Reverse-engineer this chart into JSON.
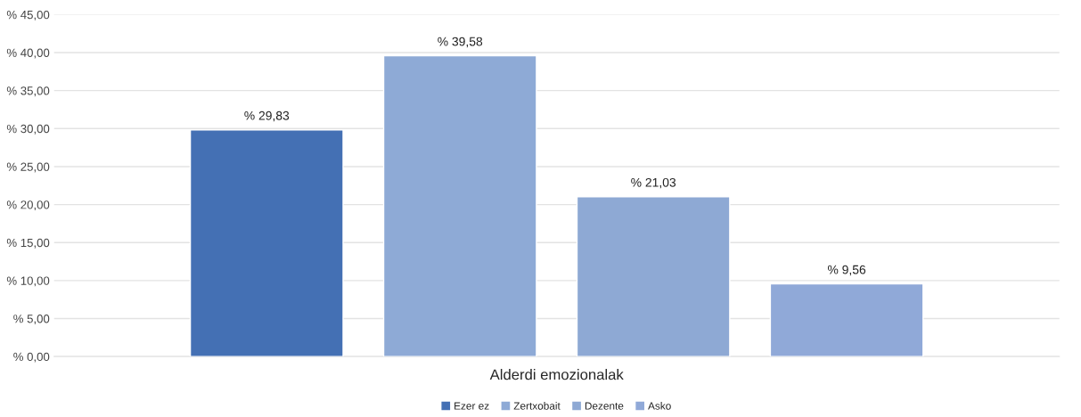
{
  "chart_data": {
    "type": "bar",
    "categories": [
      "Alderdi emozionalak"
    ],
    "series": [
      {
        "name": "Ezer ez",
        "color": "#4470b4",
        "values": [
          29.83
        ],
        "value_labels": [
          "% 29,83"
        ]
      },
      {
        "name": "Zertxobait",
        "color": "#8eaad6",
        "values": [
          39.58
        ],
        "value_labels": [
          "% 39,58"
        ]
      },
      {
        "name": "Dezente",
        "color": "#8ea9d4",
        "values": [
          21.03
        ],
        "value_labels": [
          "% 21,03"
        ]
      },
      {
        "name": "Asko",
        "color": "#90a9d8",
        "values": [
          9.56
        ],
        "value_labels": [
          "% 9,56"
        ]
      }
    ],
    "ylim": [
      0,
      45
    ],
    "yticks": [
      {
        "value": 0,
        "label": "% 0,00"
      },
      {
        "value": 5,
        "label": "% 5,00"
      },
      {
        "value": 10,
        "label": "% 10,00"
      },
      {
        "value": 15,
        "label": "% 15,00"
      },
      {
        "value": 20,
        "label": "% 20,00"
      },
      {
        "value": 25,
        "label": "% 25,00"
      },
      {
        "value": 30,
        "label": "% 30,00"
      },
      {
        "value": 35,
        "label": "% 35,00"
      },
      {
        "value": 40,
        "label": "% 40,00"
      },
      {
        "value": 45,
        "label": "% 45,00"
      }
    ],
    "grid": "y",
    "legend": "bottom"
  }
}
